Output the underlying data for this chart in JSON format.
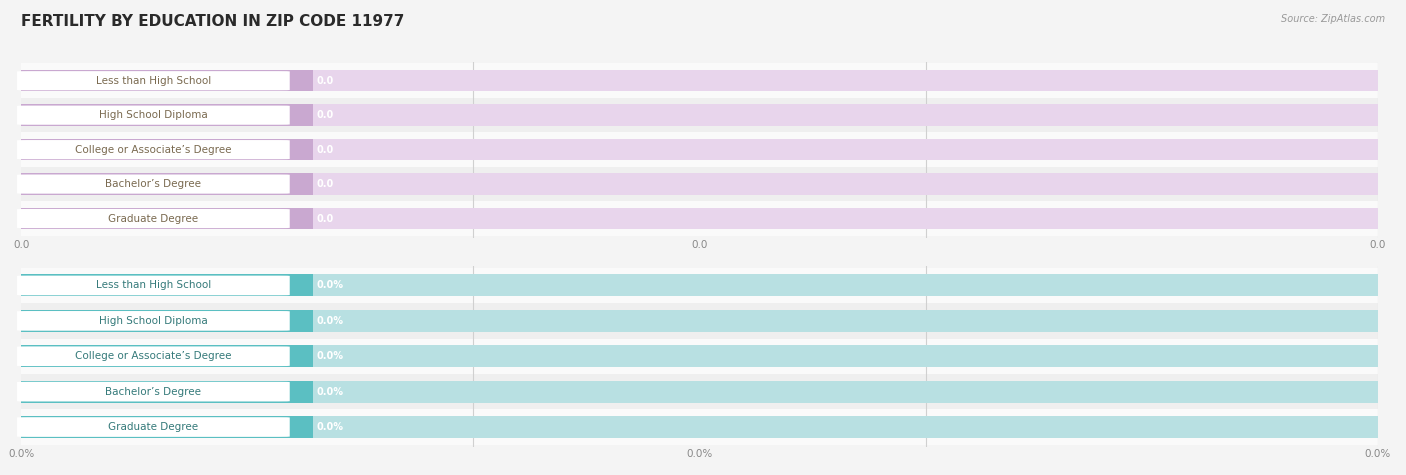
{
  "title": "FERTILITY BY EDUCATION IN ZIP CODE 11977",
  "source": "Source: ZipAtlas.com",
  "categories": [
    "Less than High School",
    "High School Diploma",
    "College or Associate’s Degree",
    "Bachelor’s Degree",
    "Graduate Degree"
  ],
  "values_top": [
    0.0,
    0.0,
    0.0,
    0.0,
    0.0
  ],
  "values_bottom": [
    0.0,
    0.0,
    0.0,
    0.0,
    0.0
  ],
  "top_bar_color": "#c9a8d0",
  "top_bar_bg": "#e8d5ec",
  "bottom_bar_color": "#5bbfc2",
  "bottom_bar_bg": "#b8e0e2",
  "label_text_color_top": "#7a6a50",
  "label_text_color_bottom": "#357a7a",
  "bg_color": "#f4f4f4",
  "row_bg_even": "#fafafa",
  "row_bg_odd": "#efefef",
  "grid_color": "#d0d0d0",
  "axis_tick_color": "#888888",
  "title_fontsize": 11,
  "label_fontsize": 7.5,
  "value_fontsize": 7,
  "axis_fontsize": 7.5
}
